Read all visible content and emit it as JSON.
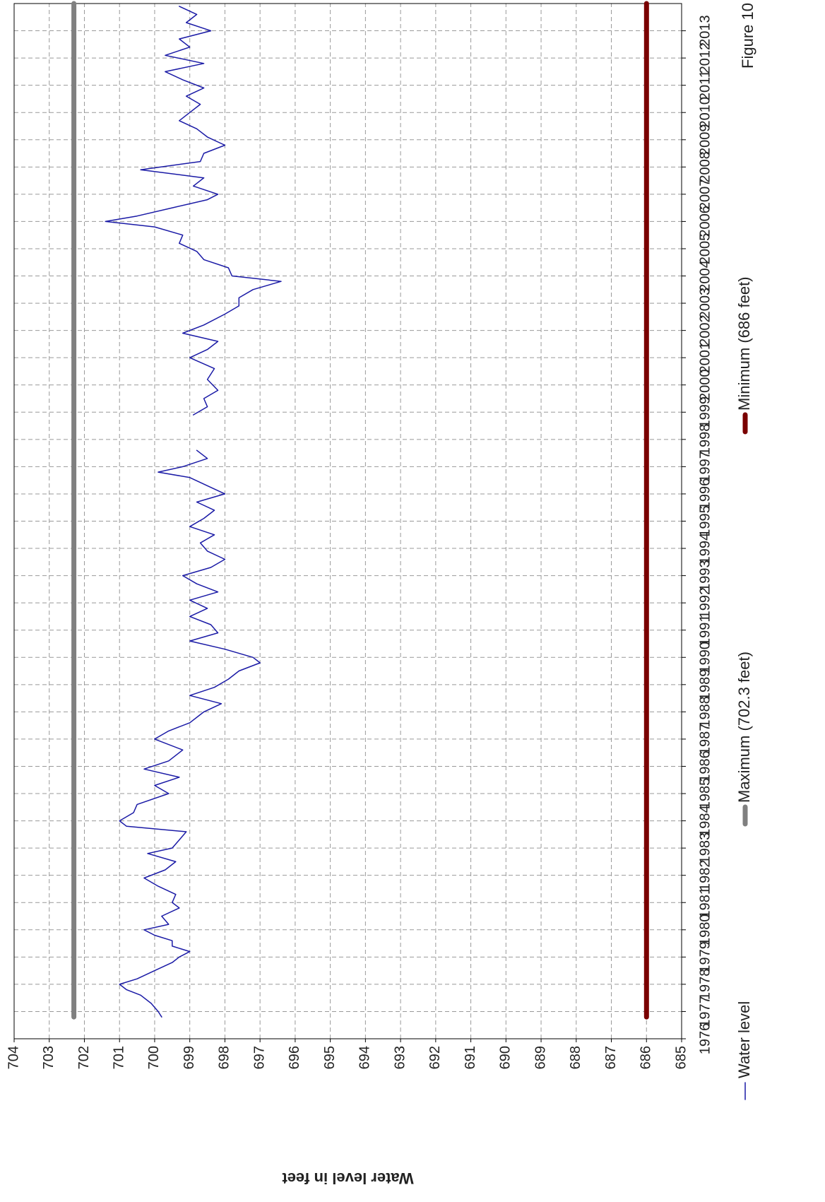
{
  "chart_data": {
    "type": "line",
    "title": "Figure 10",
    "y_label": "Water level in feet",
    "x": [
      1976.8,
      1977.0,
      1977.3,
      1977.6,
      1977.8,
      1978.0,
      1978.2,
      1978.5,
      1978.8,
      1979.0,
      1979.2,
      1979.4,
      1979.6,
      1979.8,
      1980.0,
      1980.2,
      1980.5,
      1980.8,
      1981.0,
      1981.3,
      1981.6,
      1981.9,
      1982.2,
      1982.5,
      1982.8,
      1983.0,
      1983.3,
      1983.6,
      1983.8,
      1984.0,
      1984.3,
      1984.6,
      1985.0,
      1985.3,
      1985.6,
      1985.9,
      1986.2,
      1986.6,
      1987.0,
      1987.3,
      1987.6,
      1988.0,
      1988.3,
      1988.6,
      1988.9,
      1989.2,
      1989.5,
      1989.8,
      1990.0,
      1990.3,
      1990.6,
      1990.9,
      1991.2,
      1991.5,
      1991.8,
      1992.1,
      1992.4,
      1992.7,
      1993.0,
      1993.3,
      1993.6,
      1993.9,
      1994.2,
      1994.5,
      1994.8,
      1995.1,
      1995.4,
      1995.7,
      1996.0,
      1996.3,
      1996.6,
      1996.8,
      1997.0,
      1997.3,
      1997.6,
      1998.2,
      1998.9,
      1999.2,
      1999.5,
      1999.8,
      2000.2,
      2000.6,
      2001.0,
      2001.3,
      2001.6,
      2001.9,
      2002.2,
      2002.6,
      2002.9,
      2003.2,
      2003.5,
      2003.8,
      2004.0,
      2004.3,
      2004.6,
      2004.9,
      2005.2,
      2005.5,
      2005.8,
      2006.0,
      2006.2,
      2006.5,
      2006.8,
      2007.0,
      2007.3,
      2007.6,
      2007.9,
      2008.2,
      2008.5,
      2008.8,
      2009.1,
      2009.4,
      2009.7,
      2010.0,
      2010.3,
      2010.6,
      2010.9,
      2011.2,
      2011.5,
      2011.8,
      2012.1,
      2012.4,
      2012.7,
      2013.0,
      2013.3,
      2013.6,
      2013.9
    ],
    "series": [
      {
        "name": "Water level",
        "color": "#1a1aa6",
        "values": [
          699.8,
          699.9,
          700.1,
          700.4,
          700.8,
          701.0,
          700.5,
          700.0,
          699.5,
          699.3,
          699.0,
          699.5,
          699.5,
          700.0,
          700.3,
          699.6,
          699.8,
          699.3,
          699.5,
          699.4,
          699.9,
          700.3,
          699.7,
          699.4,
          700.2,
          699.5,
          699.3,
          699.1,
          700.8,
          701.0,
          700.6,
          700.5,
          699.6,
          700.0,
          699.3,
          700.3,
          699.6,
          699.2,
          700.0,
          699.6,
          699.0,
          698.6,
          698.1,
          699.0,
          698.3,
          697.9,
          697.6,
          697.0,
          697.2,
          698.0,
          699.0,
          698.2,
          698.4,
          699.0,
          698.5,
          699.0,
          698.2,
          698.8,
          699.2,
          698.4,
          698.0,
          698.5,
          698.7,
          698.3,
          699.0,
          698.6,
          698.3,
          698.8,
          698.0,
          698.5,
          699.0,
          699.9,
          699.2,
          698.5,
          698.8,
          null,
          698.9,
          698.5,
          698.6,
          698.2,
          698.5,
          698.3,
          699.0,
          698.5,
          698.2,
          699.2,
          698.6,
          698.0,
          697.6,
          697.6,
          697.2,
          696.4,
          697.8,
          697.9,
          698.6,
          698.8,
          699.3,
          699.2,
          700.0,
          701.4,
          700.5,
          699.5,
          698.5,
          698.2,
          698.9,
          698.6,
          700.4,
          698.7,
          698.6,
          698.0,
          698.5,
          698.8,
          699.3,
          699.0,
          698.7,
          699.1,
          698.6,
          699.2,
          699.7,
          698.6,
          699.7,
          699.0,
          699.3,
          698.4,
          699.1,
          698.8,
          699.3
        ]
      },
      {
        "name": "Maximum (702.3 feet)",
        "color": "#808080",
        "x": [
          1976.8,
          2014
        ],
        "values": [
          702.3,
          702.3
        ]
      },
      {
        "name": "Minimum (686 feet)",
        "color": "#7a0000",
        "x": [
          1976.8,
          2014
        ],
        "values": [
          686,
          686
        ]
      }
    ],
    "xlim": [
      1976,
      2014
    ],
    "xticks": [
      1976,
      1977,
      1978,
      1979,
      1980,
      1981,
      1982,
      1983,
      1984,
      1985,
      1986,
      1987,
      1988,
      1989,
      1990,
      1991,
      1992,
      1993,
      1994,
      1995,
      1996,
      1997,
      1998,
      1999,
      2000,
      2001,
      2002,
      2003,
      2004,
      2005,
      2006,
      2007,
      2008,
      2009,
      2010,
      2011,
      2012,
      2013
    ],
    "ylim": [
      685,
      704
    ],
    "yticks": [
      685,
      686,
      687,
      688,
      689,
      690,
      691,
      692,
      693,
      694,
      695,
      696,
      697,
      698,
      699,
      700,
      701,
      702,
      703,
      704
    ],
    "grid": true,
    "legend": "bottom"
  }
}
